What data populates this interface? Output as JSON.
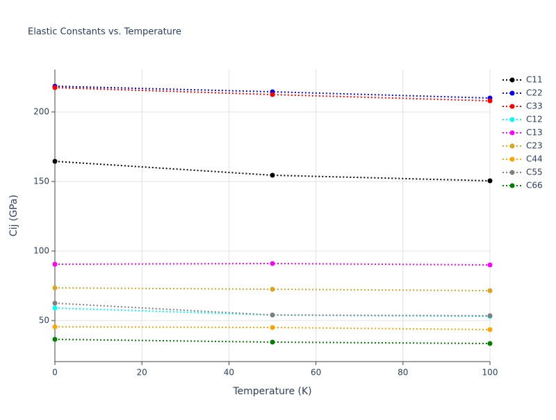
{
  "chart_data": {
    "type": "line",
    "title": "Elastic Constants vs. Temperature",
    "x_label": "Temperature (K)",
    "y_label": "Cij (GPa)",
    "x": [
      0,
      50,
      100
    ],
    "series": [
      {
        "name": "C11",
        "color": "#000000",
        "values": [
          164.5,
          154.5,
          150.5
        ]
      },
      {
        "name": "C22",
        "color": "#0000ff",
        "values": [
          218.5,
          214.5,
          210
        ]
      },
      {
        "name": "C33",
        "color": "#ff0000",
        "values": [
          217.5,
          212.5,
          208
        ]
      },
      {
        "name": "C12",
        "color": "#00ffff",
        "values": [
          59,
          54,
          53
        ]
      },
      {
        "name": "C13",
        "color": "#ff00ff",
        "values": [
          90.5,
          91,
          90
        ]
      },
      {
        "name": "C23",
        "color": "#daa520",
        "values": [
          73.5,
          72.5,
          71.5
        ]
      },
      {
        "name": "C44",
        "color": "#ffa500",
        "values": [
          45.5,
          45,
          43.5
        ]
      },
      {
        "name": "C55",
        "color": "#808080",
        "values": [
          62.5,
          54,
          53.5
        ]
      },
      {
        "name": "C66",
        "color": "#008000",
        "values": [
          36.5,
          34.5,
          33.5
        ]
      }
    ],
    "xlim": [
      0,
      100
    ],
    "xticks": [
      0,
      20,
      40,
      60,
      80,
      100
    ],
    "ylim": [
      20.5,
      230.5
    ],
    "yticks": [
      50,
      100,
      150,
      200
    ],
    "grid": true,
    "line_style": "dotted",
    "legend_position": "right"
  }
}
